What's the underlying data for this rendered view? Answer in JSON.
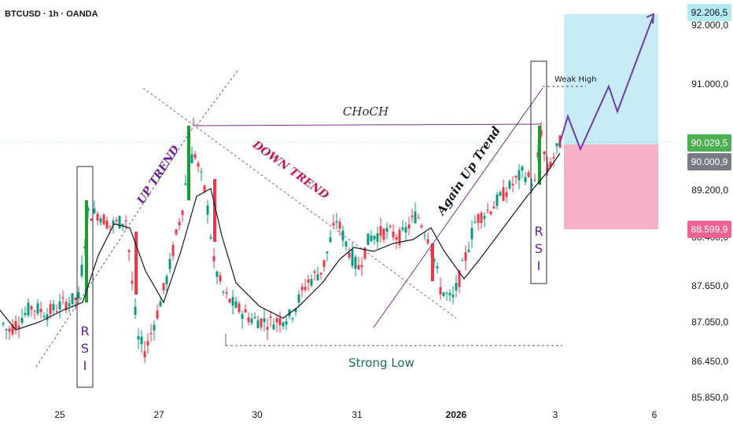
{
  "symbol": "BTCUSD · 1h · OANDA",
  "chart_data": {
    "type": "candlestick",
    "ylim": [
      85850,
      92450
    ],
    "y_ticks": [
      "92.000,0",
      "91.000,0",
      "89.200,0",
      "88.400,0",
      "87.650,0",
      "87.050,0",
      "86.450,0",
      "85.850,0"
    ],
    "y_tick_values": [
      92000,
      91000,
      89200,
      88400,
      87650,
      87050,
      86450,
      85850
    ],
    "x_ticks": [
      "25",
      "27",
      "30",
      "31",
      "2026",
      "3",
      "6"
    ],
    "price_tags": {
      "target": "92.206,5",
      "upper": "90.029,5",
      "current": "90.000,9",
      "stop": "88.599,9"
    },
    "annotations": {
      "choch": "CHoCH",
      "up_trend": "UP TREND",
      "down_trend": "DOWN TREND",
      "again_up_trend": "Again Up Trend",
      "strong_low": "Strong Low",
      "weak_high": "Weak High",
      "rsi": "RSI"
    },
    "colors": {
      "up": "#089981",
      "up_strong": "#1a9c2e",
      "down": "#f23645",
      "purple": "#7b2f8e",
      "navy": "#2a2e39",
      "target_zone": "#bde9f3",
      "stop_zone": "#f5a8c3",
      "tag_blue": "#b2ebf2",
      "tag_green": "#4caf50",
      "tag_grey": "#787b86",
      "tag_pink": "#f06292"
    }
  }
}
